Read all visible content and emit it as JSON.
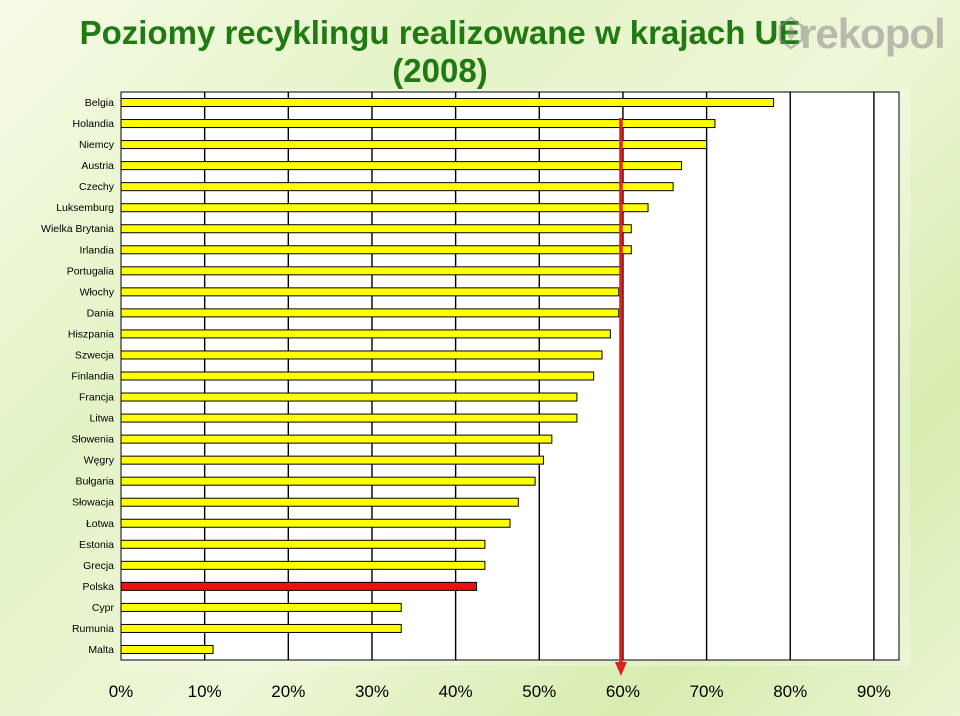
{
  "logo": {
    "text": "rekopol",
    "icon": "recycle-leaf-logo"
  },
  "chart_data": {
    "type": "bar",
    "orientation": "horizontal",
    "title": "Poziomy recyklingu realizowane w krajach UE",
    "subtitle": "(2008)",
    "categories": [
      "Belgia",
      "Holandia",
      "Niemcy",
      "Austria",
      "Czechy",
      "Luksemburg",
      "Wielka Brytania",
      "Irlandia",
      "Portugalia",
      "Włochy",
      "Dania",
      "Hiszpania",
      "Szwecja",
      "Finlandia",
      "Francja",
      "Litwa",
      "Słowenia",
      "Węgry",
      "Bułgaria",
      "Słowacja",
      "Łotwa",
      "Estonia",
      "Grecja",
      "Polska",
      "Cypr",
      "Rumunia",
      "Malta"
    ],
    "values": [
      78,
      71,
      70,
      67,
      66,
      63,
      61,
      61,
      60,
      59.5,
      59.5,
      58.5,
      57.5,
      56.5,
      54.5,
      54.5,
      51.5,
      50.5,
      49.5,
      47.5,
      46.5,
      43.5,
      43.5,
      42.5,
      33.5,
      33.5,
      11
    ],
    "highlight": "Polska",
    "bar_color": "#ffff00",
    "highlight_color": "#ee1111",
    "target_value": 60,
    "target_color": "#dd2222",
    "xlim": [
      0,
      93
    ],
    "xticks": [
      "0%",
      "10%",
      "20%",
      "30%",
      "40%",
      "50%",
      "60%",
      "70%",
      "80%",
      "90%"
    ],
    "xtick_values": [
      0,
      10,
      20,
      30,
      40,
      50,
      60,
      70,
      80,
      90
    ],
    "grid": true
  }
}
